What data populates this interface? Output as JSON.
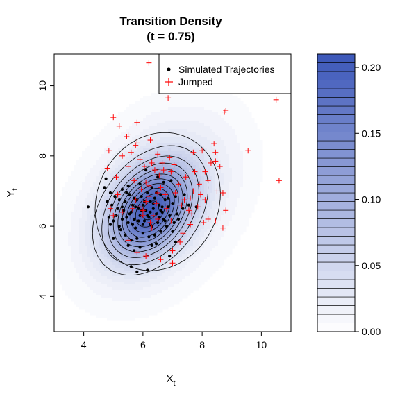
{
  "chart_data": {
    "type": "scatter",
    "title": "Transition Density",
    "subtitle": "(t = 0.75)",
    "xlabel": "X",
    "xlabel_sub": "t",
    "ylabel": "Y",
    "ylabel_sub": "t",
    "xlim": [
      3,
      11
    ],
    "ylim": [
      3,
      10.9
    ],
    "x_ticks": [
      4,
      6,
      8,
      10
    ],
    "y_ticks": [
      4,
      6,
      8,
      10
    ],
    "grid": false,
    "legend_placement": "top-right",
    "density": {
      "mean": [
        6.25,
        6.45
      ],
      "sd": [
        0.9,
        0.85
      ],
      "rho": 0.35,
      "peak": 0.21,
      "outer_center": [
        6.5,
        6.7
      ],
      "outer_sd": [
        1.8,
        1.7
      ],
      "outer_rho": 0.35,
      "outer_weight": 0.22
    },
    "colorbar": {
      "min": 0.0,
      "max": 0.21,
      "ticks": [
        0.0,
        0.05,
        0.1,
        0.15,
        0.2
      ],
      "tick_labels": [
        "0.00",
        "0.05",
        "0.10",
        "0.15",
        "0.20"
      ],
      "levels": 32,
      "color_low": "#ffffff",
      "color_high": "#3b56b8"
    },
    "series": [
      {
        "name": "Simulated Trajectories",
        "marker": "dot",
        "color": "#000000",
        "points": [
          [
            4.15,
            6.55
          ],
          [
            4.75,
            7.35
          ],
          [
            4.7,
            7.1
          ],
          [
            4.9,
            6.95
          ],
          [
            4.8,
            6.7
          ],
          [
            4.95,
            6.6
          ],
          [
            5.05,
            6.85
          ],
          [
            5.1,
            6.3
          ],
          [
            4.85,
            6.25
          ],
          [
            5.0,
            6.15
          ],
          [
            5.2,
            6.0
          ],
          [
            5.25,
            5.9
          ],
          [
            5.3,
            6.55
          ],
          [
            5.35,
            6.45
          ],
          [
            5.4,
            6.7
          ],
          [
            5.45,
            6.25
          ],
          [
            5.5,
            6.1
          ],
          [
            5.55,
            6.9
          ],
          [
            5.6,
            6.4
          ],
          [
            5.65,
            6.6
          ],
          [
            5.7,
            6.2
          ],
          [
            5.75,
            5.95
          ],
          [
            5.8,
            6.75
          ],
          [
            5.85,
            6.5
          ],
          [
            5.9,
            6.3
          ],
          [
            5.95,
            6.85
          ],
          [
            6.0,
            6.6
          ],
          [
            6.05,
            6.15
          ],
          [
            6.1,
            6.45
          ],
          [
            6.15,
            6.95
          ],
          [
            6.2,
            6.25
          ],
          [
            6.25,
            6.7
          ],
          [
            6.3,
            6.0
          ],
          [
            6.35,
            6.5
          ],
          [
            6.4,
            6.8
          ],
          [
            6.45,
            6.35
          ],
          [
            6.5,
            6.1
          ],
          [
            6.55,
            6.6
          ],
          [
            6.6,
            6.9
          ],
          [
            6.65,
            6.4
          ],
          [
            6.7,
            6.2
          ],
          [
            6.75,
            6.75
          ],
          [
            6.8,
            6.0
          ],
          [
            6.85,
            6.55
          ],
          [
            6.9,
            6.3
          ],
          [
            7.0,
            6.65
          ],
          [
            7.05,
            6.1
          ],
          [
            7.1,
            6.85
          ],
          [
            7.15,
            6.35
          ],
          [
            5.2,
            6.75
          ],
          [
            5.3,
            6.2
          ],
          [
            5.45,
            6.95
          ],
          [
            5.55,
            6.35
          ],
          [
            5.65,
            6.05
          ],
          [
            5.75,
            6.55
          ],
          [
            5.85,
            6.15
          ],
          [
            5.95,
            6.45
          ],
          [
            6.05,
            6.7
          ],
          [
            6.15,
            6.3
          ],
          [
            6.25,
            6.05
          ],
          [
            6.35,
            6.65
          ],
          [
            6.45,
            6.95
          ],
          [
            6.55,
            6.25
          ],
          [
            6.65,
            6.55
          ],
          [
            6.75,
            6.15
          ],
          [
            6.85,
            6.8
          ],
          [
            5.4,
            5.75
          ],
          [
            5.6,
            5.6
          ],
          [
            5.8,
            5.65
          ],
          [
            6.0,
            5.8
          ],
          [
            6.2,
            5.7
          ],
          [
            6.4,
            5.75
          ],
          [
            6.6,
            5.85
          ],
          [
            5.9,
            5.4
          ],
          [
            6.3,
            5.45
          ],
          [
            5.7,
            5.3
          ],
          [
            5.5,
            5.45
          ],
          [
            5.6,
            4.85
          ],
          [
            5.8,
            4.7
          ],
          [
            6.15,
            4.75
          ],
          [
            6.9,
            5.15
          ],
          [
            7.0,
            5.85
          ],
          [
            7.35,
            6.5
          ],
          [
            7.55,
            6.6
          ],
          [
            7.8,
            6.55
          ],
          [
            7.4,
            6.9
          ],
          [
            6.5,
            7.4
          ],
          [
            6.1,
            7.6
          ],
          [
            5.9,
            7.2
          ],
          [
            6.7,
            7.25
          ],
          [
            6.95,
            7.3
          ],
          [
            5.5,
            7.15
          ],
          [
            5.3,
            7.05
          ],
          [
            6.3,
            7.1
          ],
          [
            7.2,
            6.2
          ],
          [
            4.9,
            6.05
          ],
          [
            5.0,
            5.65
          ],
          [
            6.45,
            5.5
          ],
          [
            7.1,
            5.55
          ],
          [
            5.15,
            6.5
          ],
          [
            6.0,
            6.05
          ],
          [
            6.6,
            6.45
          ],
          [
            5.7,
            6.8
          ],
          [
            6.25,
            6.4
          ]
        ]
      },
      {
        "name": "Jumped",
        "marker": "plus",
        "color": "#ff0000",
        "points": [
          [
            6.2,
            10.65
          ],
          [
            6.85,
            9.65
          ],
          [
            5.0,
            9.1
          ],
          [
            5.2,
            8.85
          ],
          [
            5.8,
            8.95
          ],
          [
            5.5,
            8.6
          ],
          [
            5.45,
            8.55
          ],
          [
            5.8,
            8.4
          ],
          [
            5.3,
            8.0
          ],
          [
            6.25,
            8.45
          ],
          [
            5.75,
            8.3
          ],
          [
            5.6,
            8.1
          ],
          [
            6.5,
            8.05
          ],
          [
            4.85,
            8.15
          ],
          [
            5.9,
            7.9
          ],
          [
            6.05,
            7.7
          ],
          [
            6.9,
            7.95
          ],
          [
            6.4,
            7.6
          ],
          [
            6.7,
            7.6
          ],
          [
            6.95,
            7.55
          ],
          [
            5.5,
            7.7
          ],
          [
            4.8,
            7.65
          ],
          [
            5.1,
            7.4
          ],
          [
            5.7,
            7.3
          ],
          [
            6.1,
            7.25
          ],
          [
            7.7,
            8.1
          ],
          [
            8.0,
            8.15
          ],
          [
            8.3,
            7.8
          ],
          [
            8.45,
            7.85
          ],
          [
            8.6,
            7.7
          ],
          [
            8.45,
            8.1
          ],
          [
            8.1,
            7.55
          ],
          [
            8.4,
            8.35
          ],
          [
            8.8,
            9.3
          ],
          [
            8.75,
            9.25
          ],
          [
            9.55,
            8.15
          ],
          [
            10.5,
            9.6
          ],
          [
            10.6,
            7.3
          ],
          [
            8.2,
            7.3
          ],
          [
            7.9,
            7.2
          ],
          [
            7.7,
            7.0
          ],
          [
            7.95,
            6.9
          ],
          [
            8.1,
            6.75
          ],
          [
            8.5,
            7.0
          ],
          [
            8.7,
            6.95
          ],
          [
            7.6,
            6.8
          ],
          [
            7.4,
            6.75
          ],
          [
            7.3,
            6.6
          ],
          [
            7.55,
            6.45
          ],
          [
            7.65,
            6.35
          ],
          [
            7.85,
            6.55
          ],
          [
            8.2,
            6.2
          ],
          [
            8.45,
            6.15
          ],
          [
            8.7,
            5.95
          ],
          [
            8.8,
            6.45
          ],
          [
            8.05,
            6.1
          ],
          [
            7.6,
            6.05
          ],
          [
            7.35,
            5.8
          ],
          [
            7.25,
            5.55
          ],
          [
            7.0,
            5.3
          ],
          [
            6.6,
            5.05
          ],
          [
            7.0,
            4.95
          ],
          [
            6.1,
            5.15
          ],
          [
            5.8,
            5.25
          ],
          [
            5.5,
            5.6
          ],
          [
            6.3,
            5.95
          ],
          [
            6.5,
            6.2
          ],
          [
            6.0,
            6.3
          ],
          [
            5.9,
            6.55
          ],
          [
            6.0,
            6.45
          ],
          [
            6.1,
            6.7
          ],
          [
            6.35,
            6.3
          ],
          [
            6.2,
            6.85
          ],
          [
            5.65,
            6.5
          ],
          [
            5.75,
            6.75
          ],
          [
            6.45,
            6.65
          ],
          [
            6.5,
            6.95
          ],
          [
            6.6,
            7.1
          ],
          [
            6.75,
            6.9
          ],
          [
            6.8,
            6.5
          ],
          [
            6.95,
            6.15
          ],
          [
            6.25,
            6.1
          ],
          [
            5.3,
            6.4
          ],
          [
            5.15,
            6.9
          ],
          [
            5.0,
            6.3
          ],
          [
            4.9,
            6.5
          ],
          [
            7.1,
            6.95
          ],
          [
            7.2,
            7.2
          ],
          [
            7.45,
            7.4
          ],
          [
            7.75,
            7.55
          ],
          [
            7.05,
            7.75
          ],
          [
            6.65,
            7.8
          ],
          [
            6.3,
            7.8
          ],
          [
            6.55,
            7.45
          ],
          [
            6.2,
            7.15
          ],
          [
            5.95,
            7.05
          ]
        ]
      }
    ]
  }
}
